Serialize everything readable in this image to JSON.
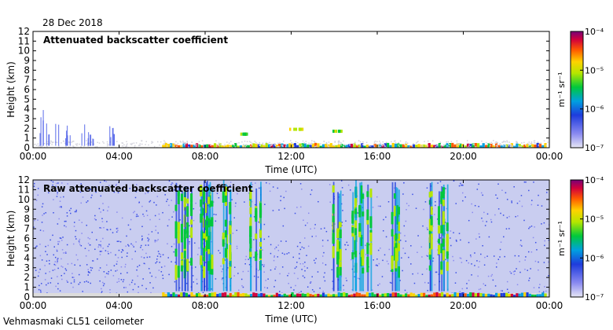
{
  "date_label": "28 Dec 2018",
  "footer_label": "Vehmasmaki CL51 ceilometer",
  "chart_data": [
    {
      "type": "heatmap",
      "title": "Attenuated backscatter coefficient",
      "xlabel": "Time (UTC)",
      "ylabel": "Height (km)",
      "x_ticks": [
        "00:00",
        "04:00",
        "08:00",
        "12:00",
        "16:00",
        "20:00",
        "00:00"
      ],
      "xlim_hours": [
        0,
        24
      ],
      "y_ticks": [
        0,
        1,
        2,
        3,
        4,
        5,
        6,
        7,
        8,
        9,
        10,
        11,
        12
      ],
      "ylim": [
        0,
        12
      ],
      "grid": false,
      "colorbar": {
        "scale": "log",
        "unit_label": "m⁻¹ sr⁻¹",
        "ticks": [
          "10⁻⁷",
          "10⁻⁶",
          "10⁻⁵",
          "10⁻⁴"
        ],
        "range": [
          1e-07,
          0.0001
        ]
      },
      "features": [
        {
          "kind": "surface_layer",
          "t_start": 6.0,
          "t_end": 23.8,
          "h_top": 0.5
        },
        {
          "kind": "low_noise",
          "t_start": 0.0,
          "t_end": 24.0,
          "h_top": 0.8
        },
        {
          "kind": "precip_streaks",
          "t_start": 0.0,
          "t_end": 3.8,
          "h_top": 4.5
        },
        {
          "kind": "cloud",
          "t_start": 9.6,
          "t_end": 9.9,
          "h": 1.4
        },
        {
          "kind": "cloud",
          "t_start": 11.8,
          "t_end": 12.6,
          "h": 1.9
        },
        {
          "kind": "cloud",
          "t_start": 13.8,
          "t_end": 14.3,
          "h": 1.7
        }
      ]
    },
    {
      "type": "heatmap",
      "title": "Raw attenuated backscatter coefficient",
      "xlabel": "Time (UTC)",
      "ylabel": "Height (km)",
      "x_ticks": [
        "00:00",
        "04:00",
        "08:00",
        "12:00",
        "16:00",
        "20:00",
        "00:00"
      ],
      "xlim_hours": [
        0,
        24
      ],
      "y_ticks": [
        0,
        1,
        2,
        3,
        4,
        5,
        6,
        7,
        8,
        9,
        10,
        11,
        12
      ],
      "ylim": [
        0,
        12
      ],
      "grid": false,
      "colorbar": {
        "scale": "log",
        "unit_label": "m⁻¹ sr⁻¹",
        "ticks": [
          "10⁻⁷",
          "10⁻⁶",
          "10⁻⁵",
          "10⁻⁴"
        ],
        "range": [
          1e-07,
          0.0001
        ]
      },
      "features": [
        {
          "kind": "noise_field",
          "t_start": 0.0,
          "t_end": 24.0,
          "h_top": 12.0
        },
        {
          "kind": "intense_streaks",
          "t_start": 6.6,
          "t_end": 9.2
        },
        {
          "kind": "intense_streaks",
          "t_start": 10.0,
          "t_end": 10.6
        },
        {
          "kind": "intense_streaks",
          "t_start": 13.8,
          "t_end": 14.3
        },
        {
          "kind": "intense_streaks",
          "t_start": 14.8,
          "t_end": 15.8
        },
        {
          "kind": "intense_streaks",
          "t_start": 16.5,
          "t_end": 17.1
        },
        {
          "kind": "intense_streaks",
          "t_start": 18.4,
          "t_end": 19.3
        },
        {
          "kind": "surface_layer",
          "t_start": 6.0,
          "t_end": 23.8,
          "h_top": 0.5
        }
      ]
    }
  ]
}
